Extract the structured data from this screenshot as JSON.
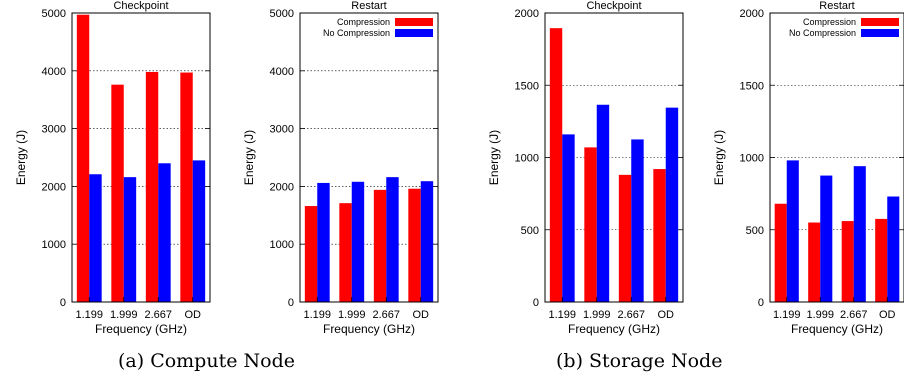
{
  "figure": {
    "captions": [
      "(a) Compute Node",
      "(b) Storage Node"
    ],
    "colors": {
      "compression": "#ff0000",
      "no_compression": "#0000ff"
    }
  },
  "chart_data": [
    {
      "type": "bar",
      "title": "Checkpoint",
      "xlabel": "Frequency (GHz)",
      "ylabel": "Energy (J)",
      "categories": [
        "1.199",
        "1.999",
        "2.667",
        "OD"
      ],
      "ylim": [
        0,
        5000
      ],
      "yticks": [
        0,
        1000,
        2000,
        3000,
        4000,
        5000
      ],
      "grid": true,
      "legend": null,
      "series": [
        {
          "values": [
            4970,
            3760,
            3980,
            3970
          ],
          "color": "#ff0000"
        },
        {
          "values": [
            2210,
            2160,
            2400,
            2450
          ],
          "color": "#0000ff"
        }
      ]
    },
    {
      "type": "bar",
      "title": "Restart",
      "xlabel": "Frequency (GHz)",
      "ylabel": "Energy (J)",
      "categories": [
        "1.199",
        "1.999",
        "2.667",
        "OD"
      ],
      "ylim": [
        0,
        5000
      ],
      "yticks": [
        0,
        1000,
        2000,
        3000,
        4000,
        5000
      ],
      "grid": true,
      "legend": "top-right",
      "series": [
        {
          "name": "Compression",
          "values": [
            1660,
            1710,
            1940,
            1960
          ],
          "color": "#ff0000"
        },
        {
          "name": "No Compression",
          "values": [
            2060,
            2080,
            2160,
            2090
          ],
          "color": "#0000ff"
        }
      ]
    },
    {
      "type": "bar",
      "title": "Checkpoint",
      "xlabel": "Frequency (GHz)",
      "ylabel": "Energy (J)",
      "categories": [
        "1.199",
        "1.999",
        "2.667",
        "OD"
      ],
      "ylim": [
        0,
        2000
      ],
      "yticks": [
        0,
        500,
        1000,
        1500,
        2000
      ],
      "grid": true,
      "legend": null,
      "series": [
        {
          "values": [
            1895,
            1070,
            880,
            920
          ],
          "color": "#ff0000"
        },
        {
          "values": [
            1160,
            1365,
            1125,
            1345
          ],
          "color": "#0000ff"
        }
      ]
    },
    {
      "type": "bar",
      "title": "Restart",
      "xlabel": "Frequency (GHz)",
      "ylabel": "Energy (J)",
      "categories": [
        "1.199",
        "1.999",
        "2.667",
        "OD"
      ],
      "ylim": [
        0,
        2000
      ],
      "yticks": [
        0,
        500,
        1000,
        1500,
        2000
      ],
      "grid": true,
      "legend": "top-right",
      "series": [
        {
          "name": "Compression",
          "values": [
            680,
            550,
            560,
            575
          ],
          "color": "#ff0000"
        },
        {
          "name": "No Compression",
          "values": [
            980,
            875,
            940,
            730
          ],
          "color": "#0000ff"
        }
      ]
    }
  ]
}
